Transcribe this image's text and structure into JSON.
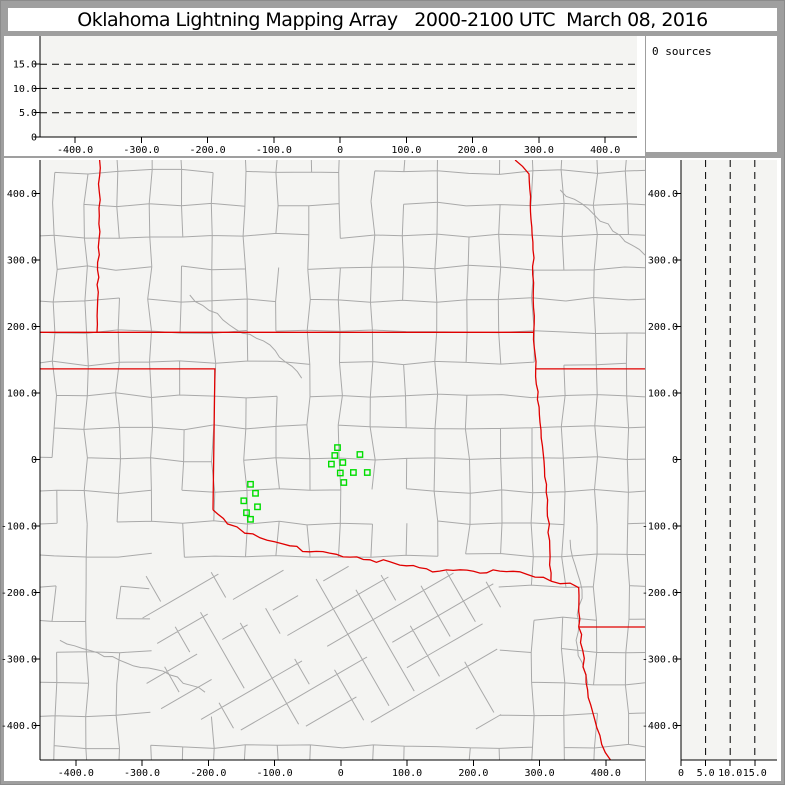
{
  "title": {
    "text": "Oklahoma Lightning Mapping Array   2000-2100 UTC  March 08, 2016"
  },
  "sources_panel": {
    "label": "0 sources",
    "count": 0
  },
  "colors": {
    "figure_bg": "#9f9f9f",
    "panel_bg": "#ffffff",
    "plot_bg": "#f4f4f2",
    "axis": "#000000",
    "county_line": "#a9a9a9",
    "state_line": "#e00000",
    "station": "#00dd00",
    "grid_dash": "#000000"
  },
  "chart_data": [
    {
      "id": "altitude-vs-ew-distance",
      "type": "scatter",
      "title": "",
      "xlabel": "",
      "ylabel": "",
      "x_range": [
        -453,
        448
      ],
      "y_range": [
        0,
        20.8
      ],
      "x_ticks": [
        -400,
        -300,
        -200,
        -100,
        0,
        100,
        200,
        300,
        400
      ],
      "x_tick_labels": [
        "-400.0",
        "-300.0",
        "-200.0",
        "-100.0",
        "0",
        "100.0",
        "200.0",
        "300.0",
        "400.0"
      ],
      "y_ticks": [
        0,
        5,
        10,
        15
      ],
      "y_tick_labels": [
        "0",
        "5.0",
        "10.0",
        "15.0"
      ],
      "dashed_gridlines_y": [
        5,
        10,
        15
      ],
      "points": []
    },
    {
      "id": "plan-view-map",
      "type": "scatter",
      "title": "",
      "xlabel": "",
      "ylabel": "",
      "x_range": [
        -454,
        459
      ],
      "y_range": [
        -452,
        450
      ],
      "x_ticks": [
        -400,
        -300,
        -200,
        -100,
        0,
        100,
        200,
        300,
        400
      ],
      "x_tick_labels": [
        "-400.0",
        "-300.0",
        "-200.0",
        "-100.0",
        "0",
        "100.0",
        "200.0",
        "300.0",
        "400.0"
      ],
      "y_ticks": [
        400,
        300,
        200,
        100,
        0,
        -100,
        -200,
        -300,
        -400
      ],
      "y_tick_labels": [
        "400.0",
        "300.0",
        "200.0",
        "100.0",
        "0",
        "-100.0",
        "-200.0",
        "-300.0",
        "-400.0"
      ],
      "stations_km": [
        [
          -5.0,
          17.7
        ],
        [
          -9.1,
          5.7
        ],
        [
          28.7,
          7.2
        ],
        [
          -14.3,
          -7.1
        ],
        [
          3.0,
          -4.8
        ],
        [
          -0.8,
          -20.6
        ],
        [
          18.9,
          -19.8
        ],
        [
          40.0,
          -19.8
        ],
        [
          4.5,
          -34.9
        ],
        [
          -136.3,
          -37.6
        ],
        [
          -128.8,
          -51.1
        ],
        [
          -146.4,
          -62.3
        ],
        [
          -125.7,
          -71.3
        ],
        [
          -142.3,
          -80.3
        ],
        [
          -136.3,
          -90.2
        ]
      ],
      "state_borders_km": [
        {
          "name": "west-vertical-border",
          "wiggle": true,
          "amp": 1.5,
          "pts": [
            [
              -364,
              450
            ],
            [
              -365,
              330
            ],
            [
              -367,
              240
            ],
            [
              -368,
              191
            ]
          ]
        },
        {
          "name": "kansas-oklahoma-37N",
          "wiggle": false,
          "amp": 0,
          "pts": [
            [
              -454,
              191
            ],
            [
              291,
              191
            ]
          ]
        },
        {
          "name": "east-state-border",
          "wiggle": true,
          "amp": 1.5,
          "pts": [
            [
              263,
              450
            ],
            [
              284,
              429
            ],
            [
              290,
              315
            ],
            [
              291,
              191
            ],
            [
              294,
              136
            ],
            [
              302,
              44
            ],
            [
              312,
              -61
            ],
            [
              317,
              -183
            ]
          ]
        },
        {
          "name": "panhandle-south-and-100W",
          "wiggle": false,
          "amp": 0,
          "pts": [
            [
              -454,
              136
            ],
            [
              -190,
              136
            ],
            [
              -193,
              -76
            ]
          ]
        },
        {
          "name": "missouri-arkansas-36p5N",
          "wiggle": false,
          "amp": 0,
          "pts": [
            [
              294,
              136
            ],
            [
              459,
              136
            ]
          ]
        },
        {
          "name": "red-river",
          "wiggle": true,
          "amp": 3,
          "pts": [
            [
              -193,
              -76
            ],
            [
              -171,
              -97
            ],
            [
              -145,
              -111
            ],
            [
              -122,
              -118
            ],
            [
              -100,
              -124
            ],
            [
              -77,
              -130
            ],
            [
              -47,
              -139
            ],
            [
              -17,
              -141
            ],
            [
              14,
              -147
            ],
            [
              44,
              -151
            ],
            [
              74,
              -154
            ],
            [
              89,
              -159
            ],
            [
              119,
              -163
            ],
            [
              149,
              -168
            ],
            [
              180,
              -166
            ],
            [
              210,
              -171
            ],
            [
              240,
              -168
            ],
            [
              270,
              -169
            ],
            [
              293,
              -177
            ],
            [
              317,
              -183
            ]
          ]
        },
        {
          "name": "arkansas-corner-jog",
          "wiggle": true,
          "amp": 2,
          "pts": [
            [
              317,
              -183
            ],
            [
              331,
              -187
            ],
            [
              346,
              -186
            ],
            [
              359,
              -193
            ],
            [
              359,
              -252
            ]
          ]
        },
        {
          "name": "south-east-horizontal",
          "wiggle": false,
          "amp": 0,
          "pts": [
            [
              359,
              -252
            ],
            [
              459,
              -252
            ]
          ]
        },
        {
          "name": "south-east-river-border",
          "wiggle": true,
          "amp": 3,
          "pts": [
            [
              359,
              -252
            ],
            [
              365,
              -287
            ],
            [
              370,
              -324
            ],
            [
              377,
              -369
            ],
            [
              391,
              -415
            ],
            [
              407,
              -452
            ]
          ]
        }
      ],
      "rivers_km": [
        [
          [
            -228,
            247
          ],
          [
            -168,
            202
          ],
          [
            -107,
            172
          ],
          [
            -59,
            122
          ]
        ],
        [
          [
            331,
            405
          ],
          [
            383,
            367
          ],
          [
            421,
            337
          ],
          [
            459,
            307
          ]
        ],
        [
          [
            346,
            -121
          ],
          [
            364,
            -196
          ],
          [
            355,
            -272
          ],
          [
            373,
            -339
          ]
        ],
        [
          [
            -424,
            -272
          ],
          [
            -334,
            -302
          ],
          [
            -258,
            -324
          ],
          [
            -205,
            -350
          ]
        ]
      ],
      "county_grid": {
        "cell_km": 48,
        "node_jitter_km": 4,
        "drop_fraction": 0.16,
        "seed": 20160308,
        "tilted_region": {
          "x_range": [
            -300,
            245
          ],
          "y_range": [
            -410,
            -160
          ],
          "angle_deg": 30,
          "spacing_km": 44
        }
      }
    },
    {
      "id": "altitude-vs-ns-distance",
      "type": "scatter",
      "title": "",
      "xlabel": "",
      "ylabel": "",
      "x_range": [
        0,
        19.5
      ],
      "y_range": [
        -452,
        450
      ],
      "x_ticks": [
        0,
        5,
        10,
        15
      ],
      "x_tick_labels": [
        "0",
        "5.0",
        "10.0",
        "15.0"
      ],
      "y_ticks": [
        400,
        300,
        200,
        100,
        0,
        -100,
        -200,
        -300,
        -400
      ],
      "y_tick_labels": [
        "400.0",
        "300.0",
        "200.0",
        "100.0",
        "0",
        "-100.0",
        "-200.0",
        "-300.0",
        "-400.0"
      ],
      "dashed_gridlines_x": [
        5,
        10,
        15
      ],
      "points": []
    }
  ]
}
